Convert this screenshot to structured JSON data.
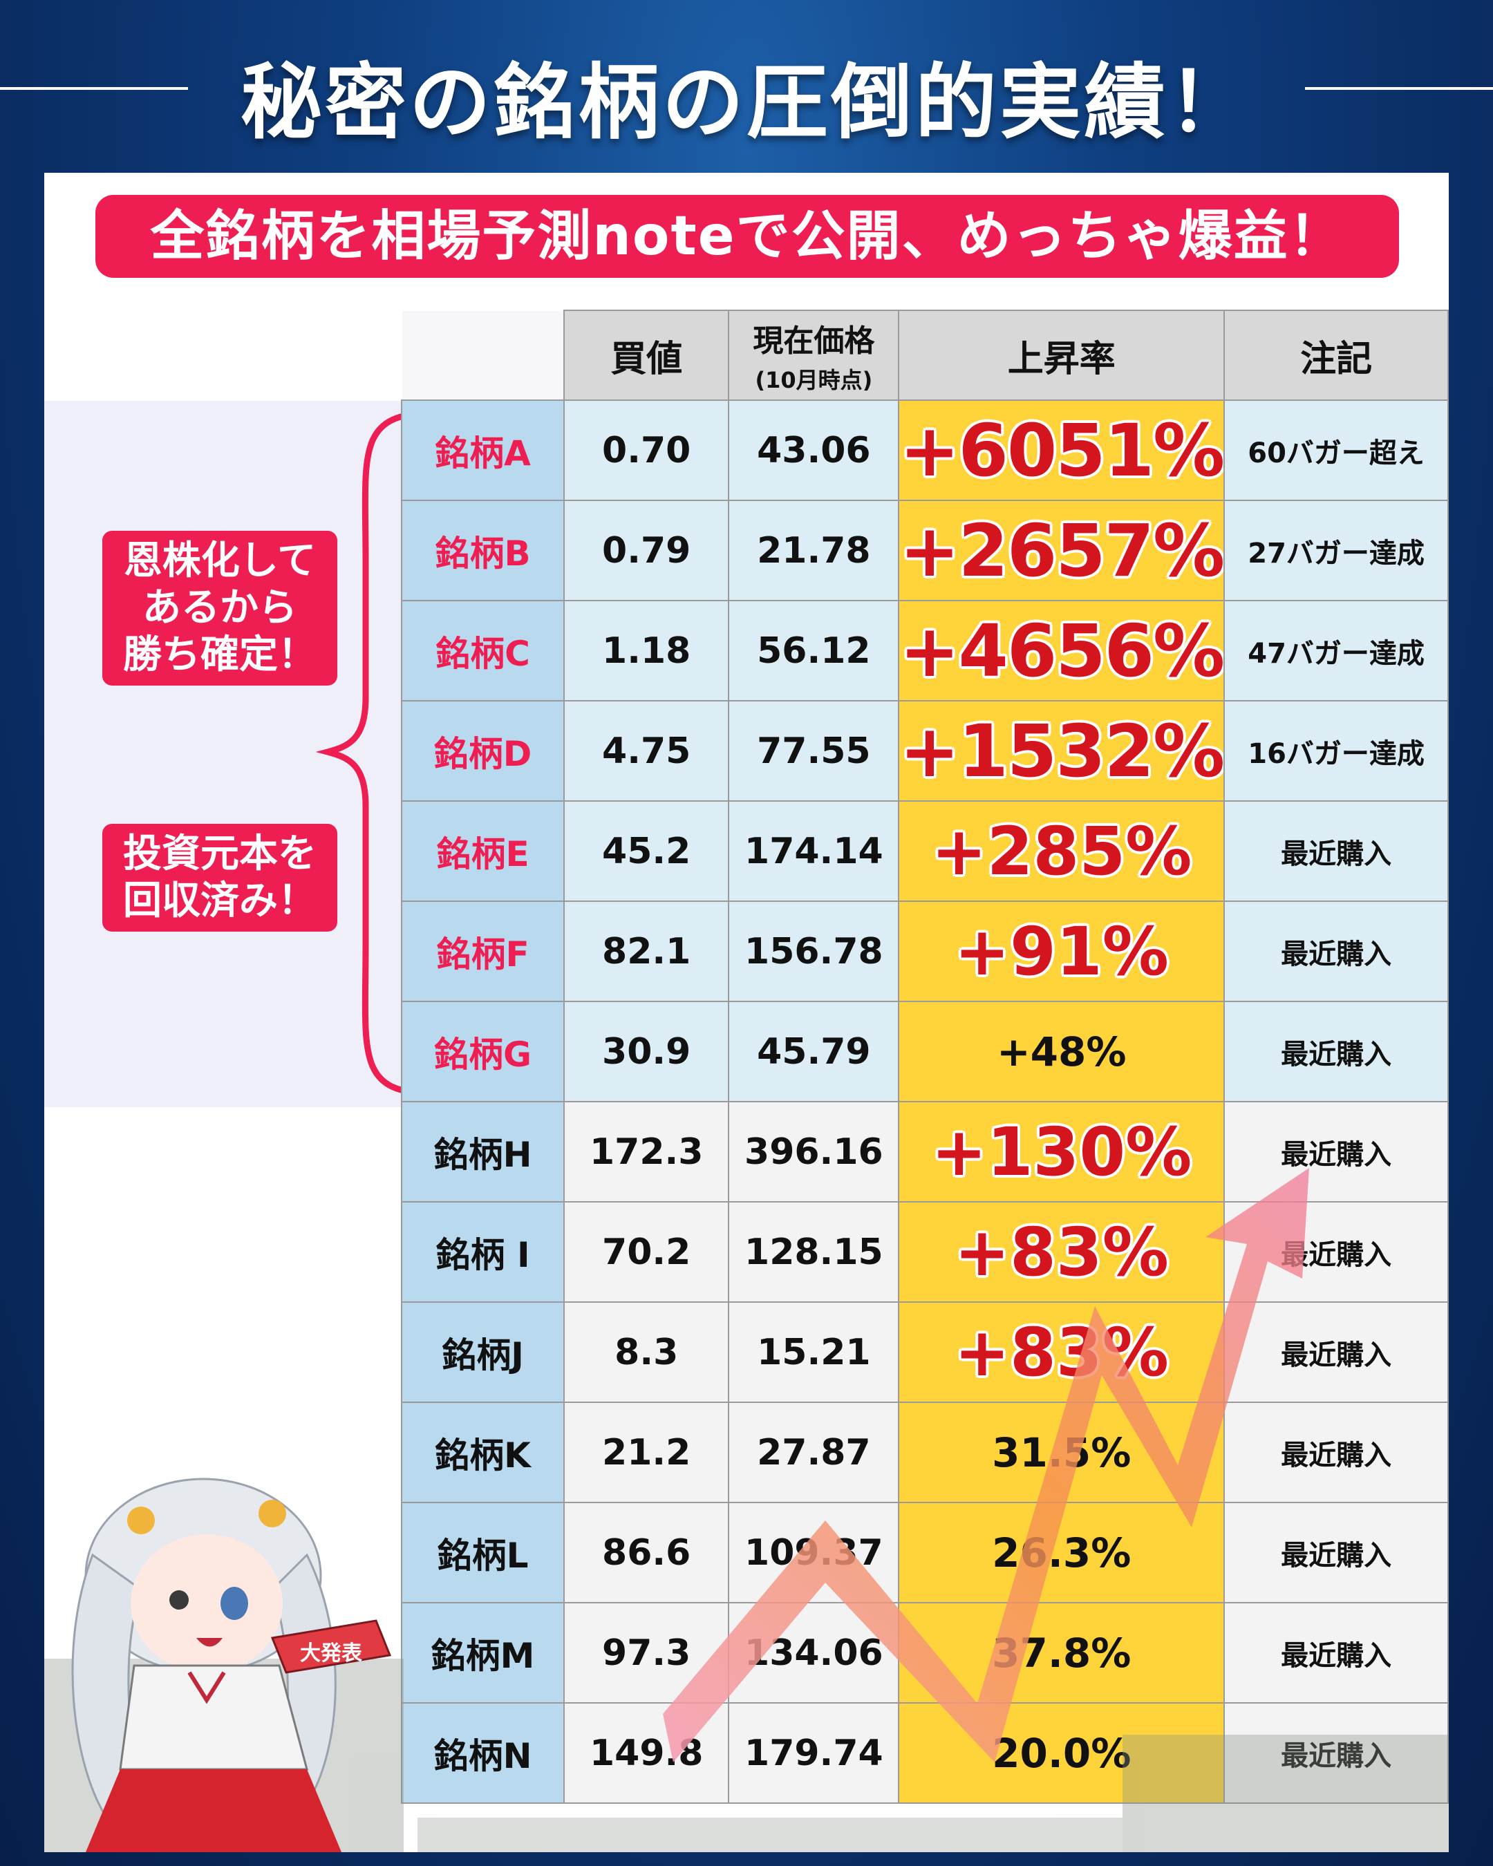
{
  "title": "秘密の銘柄の圧倒的実績！",
  "banner": "全銘柄を相場予測noteで公開、めっちゃ爆益！",
  "side_labels": [
    "恩株化して\nあるから\n勝ち確定！",
    "投資元本を\n回収済み！"
  ],
  "table": {
    "headers": {
      "buy": "買値",
      "current": "現在価格",
      "current_sub": "(10月時点)",
      "rate": "上昇率",
      "note": "注記"
    },
    "rows": [
      {
        "name": "銘柄A",
        "buy": "0.70",
        "current": "43.06",
        "rate": "+6051%",
        "note": "60バガー超え"
      },
      {
        "name": "銘柄B",
        "buy": "0.79",
        "current": "21.78",
        "rate": "+2657%",
        "note": "27バガー達成"
      },
      {
        "name": "銘柄C",
        "buy": "1.18",
        "current": "56.12",
        "rate": "+4656%",
        "note": "47バガー達成"
      },
      {
        "name": "銘柄D",
        "buy": "4.75",
        "current": "77.55",
        "rate": "+1532%",
        "note": "16バガー達成"
      },
      {
        "name": "銘柄E",
        "buy": "45.2",
        "current": "174.14",
        "rate": "+285%",
        "note": "最近購入"
      },
      {
        "name": "銘柄F",
        "buy": "82.1",
        "current": "156.78",
        "rate": "+91%",
        "note": "最近購入"
      },
      {
        "name": "銘柄G",
        "buy": "30.9",
        "current": "45.79",
        "rate": "+48%",
        "note": "最近購入"
      },
      {
        "name": "銘柄H",
        "buy": "172.3",
        "current": "396.16",
        "rate": "+130%",
        "note": "最近購入"
      },
      {
        "name": "銘柄 I",
        "buy": "70.2",
        "current": "128.15",
        "rate": "+83%",
        "note": "最近購入"
      },
      {
        "name": "銘柄J",
        "buy": "8.3",
        "current": "15.21",
        "rate": "+83%",
        "note": "最近購入"
      },
      {
        "name": "銘柄K",
        "buy": "21.2",
        "current": "27.87",
        "rate": "31.5%",
        "note": "最近購入"
      },
      {
        "name": "銘柄L",
        "buy": "86.6",
        "current": "109.37",
        "rate": "26.3%",
        "note": "最近購入"
      },
      {
        "name": "銘柄M",
        "buy": "97.3",
        "current": "134.06",
        "rate": "37.8%",
        "note": "最近購入"
      },
      {
        "name": "銘柄N",
        "buy": "149.8",
        "current": "179.74",
        "rate": "20.0%",
        "note": "最近購入"
      }
    ]
  },
  "fan_text": "大発表",
  "colors": {
    "accent": "#ee1e52",
    "rate_bg": "#ffd43a",
    "rate_text": "#d4151e",
    "name_bg": "#b9d9ee",
    "bg": "#0a2c63"
  }
}
